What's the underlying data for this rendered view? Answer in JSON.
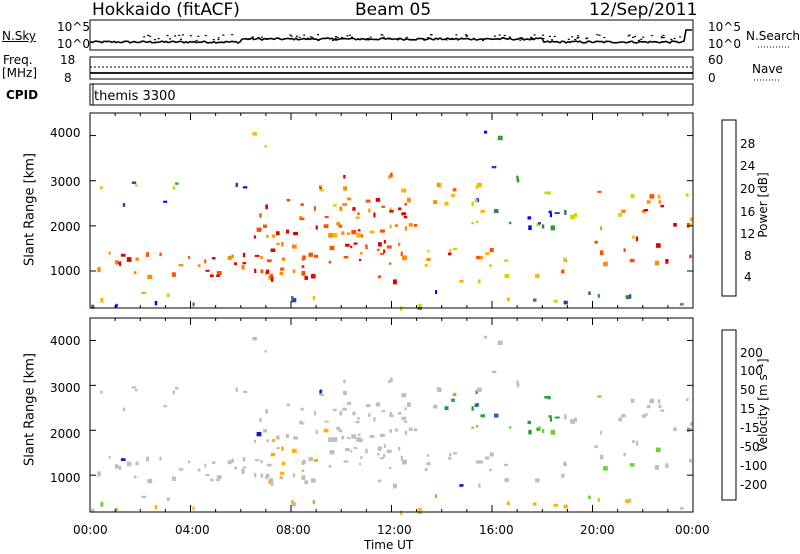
{
  "header": {
    "title": "Hokkaido (fitACF)",
    "beam": "Beam 05",
    "date": "12/Sep/2011"
  },
  "strips": {
    "nsky_label": "N.Sky",
    "nsearch_label": "N.Search",
    "freq_label": "Freq.",
    "freq_unit": "[MHz]",
    "nave_label": "Nave",
    "cpid_label": "CPID",
    "cpid_value": "themis 3300",
    "noise_ticks": [
      "10^5",
      "10^0"
    ],
    "freq_ticks": [
      "18",
      "8"
    ],
    "nave_ticks": [
      "60",
      "0"
    ]
  },
  "chart_data": [
    {
      "type": "heatmap",
      "name": "power-panel",
      "ylabel": "Slant Range [km]",
      "xlabel": "",
      "colorbar_label": "Power [dB]",
      "colorbar_ticks": [
        "28",
        "24",
        "20",
        "16",
        "12",
        "8",
        "4"
      ],
      "colorbar_colors": [
        "#e00000",
        "#ff5000",
        "#ff8c00",
        "#ffb300",
        "#c8d800",
        "#30a030",
        "#3a7a58",
        "#2040c0",
        "#0000ff"
      ],
      "x_range": [
        "00:00",
        "00:00"
      ],
      "ylim": [
        180,
        4500
      ],
      "y_ticks": [
        "1000",
        "2000",
        "3000",
        "4000"
      ]
    },
    {
      "type": "heatmap",
      "name": "velocity-panel",
      "ylabel": "Slant Range [km]",
      "xlabel": "Time UT",
      "colorbar_label": "Velocity [m s⁻¹]",
      "colorbar_ticks": [
        "200",
        "100",
        "50",
        "15",
        "-15",
        "-50",
        "-100",
        "-200"
      ],
      "colorbar_colors": [
        "#1020c0",
        "#2060c0",
        "#20a040",
        "#70d030",
        "#bebebe",
        "#ffb000",
        "#ff7000",
        "#ff3000",
        "#e00000"
      ],
      "x_ticks": [
        "00:00",
        "04:00",
        "08:00",
        "12:00",
        "16:00",
        "20:00",
        "00:00"
      ],
      "ylim": [
        180,
        4500
      ],
      "y_ticks": [
        "1000",
        "2000",
        "3000",
        "4000"
      ]
    }
  ]
}
